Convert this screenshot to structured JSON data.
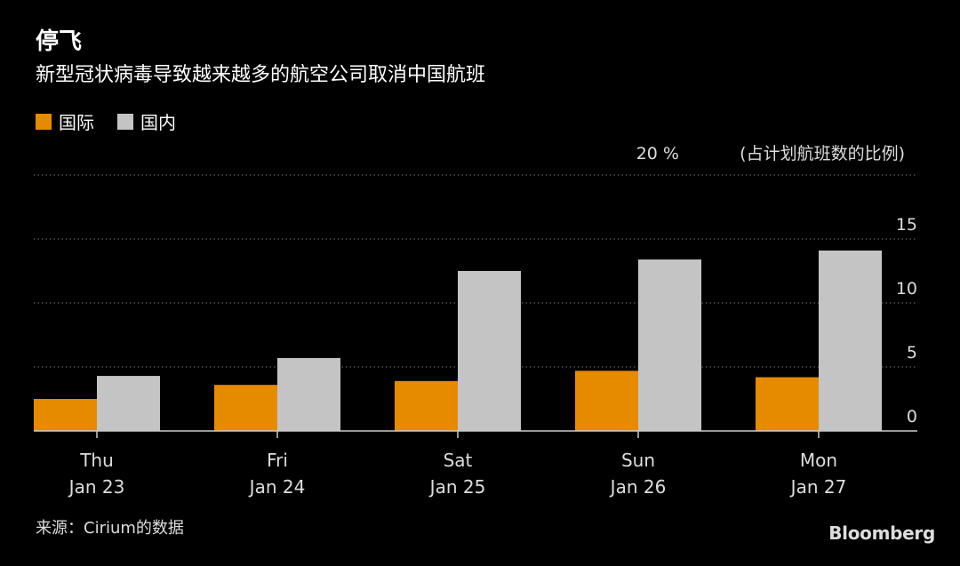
{
  "header": {
    "title": "停飞",
    "subtitle": "新型冠状病毒导致越来越多的航空公司取消中国航班"
  },
  "footer": {
    "source": "来源：Cirium的数据",
    "brand": "Bloomberg"
  },
  "chart_data": {
    "type": "bar",
    "categories": [
      "Thu\nJan 23",
      "Fri\nJan 24",
      "Sat\nJan 25",
      "Sun\nJan 26",
      "Mon\nJan 27"
    ],
    "series": [
      {
        "name": "国际",
        "color": "#E68A00",
        "values": [
          2.5,
          3.6,
          3.9,
          4.7,
          4.2
        ]
      },
      {
        "name": "国内",
        "color": "#C4C4C4",
        "values": [
          4.3,
          5.7,
          12.5,
          13.4,
          14.1
        ]
      }
    ],
    "ylim": [
      0,
      20
    ],
    "yticks": [
      0,
      5,
      10,
      15,
      20
    ],
    "top_tick_label": "20 %",
    "ylabel": "(占计划航班数的比例)",
    "grid": true,
    "legend_position": "top-left"
  }
}
